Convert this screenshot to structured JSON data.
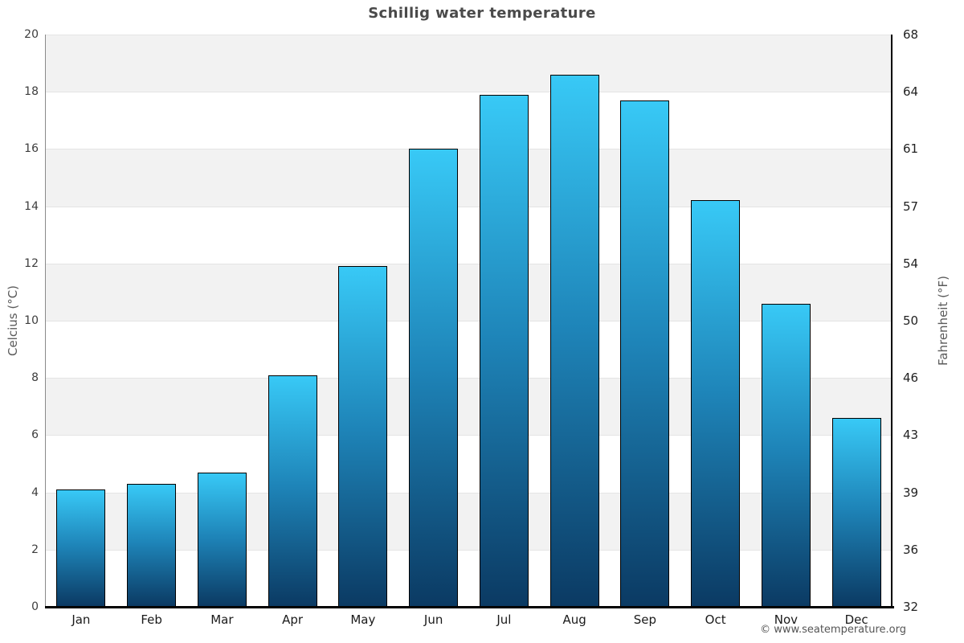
{
  "chart": {
    "title": "Schillig water temperature",
    "ylabel_left": "Celcius (°C)",
    "ylabel_right": "Fahrenheit (°F)",
    "footer": "© www.seatemperature.org"
  },
  "chart_data": {
    "type": "bar",
    "title": "Schillig water temperature",
    "categories": [
      "Jan",
      "Feb",
      "Mar",
      "Apr",
      "May",
      "Jun",
      "Jul",
      "Aug",
      "Sep",
      "Oct",
      "Nov",
      "Dec"
    ],
    "values": [
      4.1,
      4.3,
      4.7,
      8.1,
      11.9,
      16.0,
      17.9,
      18.6,
      17.7,
      14.2,
      10.6,
      6.6
    ],
    "xlabel": "",
    "ylabel": "Celcius (°C)",
    "ylabel_right": "Fahrenheit (°F)",
    "ylim": [
      0,
      20
    ],
    "yticks_celsius": [
      0,
      2,
      4,
      6,
      8,
      10,
      12,
      14,
      16,
      18,
      20
    ],
    "yticks_fahrenheit": [
      "32",
      "36",
      "39",
      "43",
      "46",
      "50",
      "54",
      "57",
      "61",
      "64",
      "68"
    ],
    "legend_position": "none",
    "grid": "alternating horizontal bands every 2 units",
    "band_gray_color": "#f2f2f2",
    "bar_gradient_top": "#38c9f6",
    "bar_gradient_mid": "#1e84b8",
    "bar_gradient_bottom": "#0b3a63",
    "bar_border_color": "#000000",
    "title_color": "#4a4a4a",
    "footer_text": "© www.seatemperature.org"
  }
}
